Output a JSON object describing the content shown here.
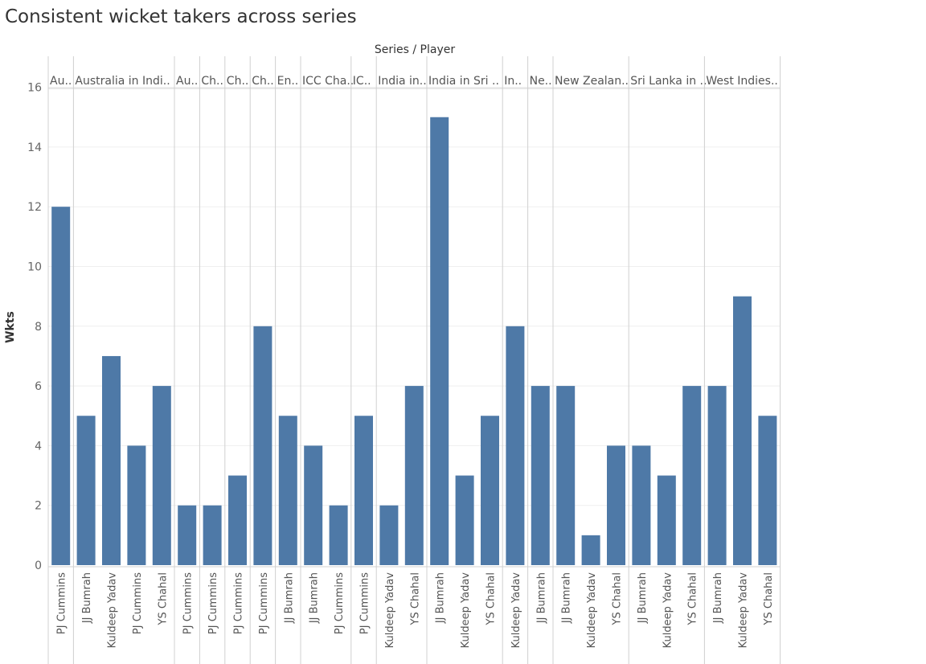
{
  "chart_data": {
    "type": "bar",
    "title": "Consistent wicket takers across series",
    "column_header": "Series / Player",
    "ylabel": "Wkts",
    "ylim": [
      0,
      16
    ],
    "yticks": [
      0,
      2,
      4,
      6,
      8,
      10,
      12,
      14,
      16
    ],
    "grid": true,
    "bar_color": "#4e79a7",
    "groups": [
      {
        "label": "Au..",
        "bars": [
          {
            "player": "PJ Cummins",
            "value": 12
          }
        ]
      },
      {
        "label": "Australia in Indi..",
        "bars": [
          {
            "player": "JJ Bumrah",
            "value": 5
          },
          {
            "player": "Kuldeep Yadav",
            "value": 7
          },
          {
            "player": "PJ Cummins",
            "value": 4
          },
          {
            "player": "YS Chahal",
            "value": 6
          }
        ]
      },
      {
        "label": "Au..",
        "bars": [
          {
            "player": "PJ Cummins",
            "value": 2
          }
        ]
      },
      {
        "label": "Ch..",
        "bars": [
          {
            "player": "PJ Cummins",
            "value": 2
          }
        ]
      },
      {
        "label": "Ch..",
        "bars": [
          {
            "player": "PJ Cummins",
            "value": 3
          }
        ]
      },
      {
        "label": "Ch..",
        "bars": [
          {
            "player": "PJ Cummins",
            "value": 8
          }
        ]
      },
      {
        "label": "En..",
        "bars": [
          {
            "player": "JJ Bumrah",
            "value": 5
          }
        ]
      },
      {
        "label": "ICC Cha..",
        "bars": [
          {
            "player": "JJ Bumrah",
            "value": 4
          },
          {
            "player": "PJ Cummins",
            "value": 2
          }
        ]
      },
      {
        "label": "IC..",
        "bars": [
          {
            "player": "PJ Cummins",
            "value": 5
          }
        ]
      },
      {
        "label": "India in..",
        "bars": [
          {
            "player": "Kuldeep Yadav",
            "value": 2
          },
          {
            "player": "YS Chahal",
            "value": 6
          }
        ]
      },
      {
        "label": "India in Sri ..",
        "bars": [
          {
            "player": "JJ Bumrah",
            "value": 15
          },
          {
            "player": "Kuldeep Yadav",
            "value": 3
          },
          {
            "player": "YS Chahal",
            "value": 5
          }
        ]
      },
      {
        "label": "In..",
        "bars": [
          {
            "player": "Kuldeep Yadav",
            "value": 8
          }
        ]
      },
      {
        "label": "Ne..",
        "bars": [
          {
            "player": "JJ Bumrah",
            "value": 6
          }
        ]
      },
      {
        "label": "New Zealan..",
        "bars": [
          {
            "player": "JJ Bumrah",
            "value": 6
          },
          {
            "player": "Kuldeep Yadav",
            "value": 1
          },
          {
            "player": "YS Chahal",
            "value": 4
          }
        ]
      },
      {
        "label": "Sri Lanka in ..",
        "bars": [
          {
            "player": "JJ Bumrah",
            "value": 4
          },
          {
            "player": "Kuldeep Yadav",
            "value": 3
          },
          {
            "player": "YS Chahal",
            "value": 6
          }
        ]
      },
      {
        "label": "West Indies..",
        "bars": [
          {
            "player": "JJ Bumrah",
            "value": 6
          },
          {
            "player": "Kuldeep Yadav",
            "value": 9
          },
          {
            "player": "YS Chahal",
            "value": 5
          }
        ]
      }
    ]
  }
}
